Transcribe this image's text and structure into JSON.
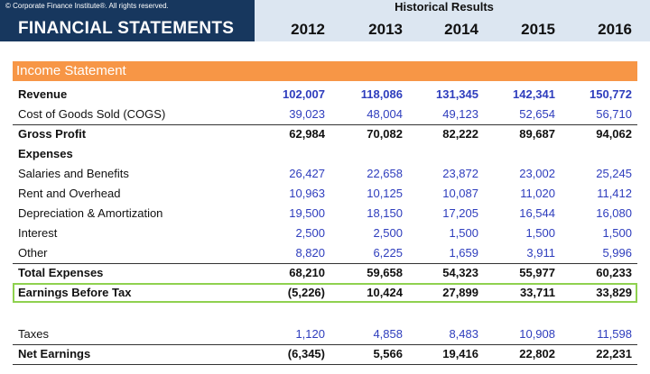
{
  "header": {
    "copyright": "© Corporate Finance Institute®. All rights reserved.",
    "title": "FINANCIAL STATEMENTS",
    "historical_label": "Historical Results",
    "years": [
      "2012",
      "2013",
      "2014",
      "2015",
      "2016"
    ]
  },
  "section": {
    "title": "Income Statement"
  },
  "rows": [
    {
      "label": "Revenue",
      "values": [
        "102,007",
        "118,086",
        "131,345",
        "142,341",
        "150,772"
      ]
    },
    {
      "label": "Cost of Goods Sold (COGS)",
      "values": [
        "39,023",
        "48,004",
        "49,123",
        "52,654",
        "56,710"
      ]
    },
    {
      "label": "Gross Profit",
      "values": [
        "62,984",
        "70,082",
        "82,222",
        "89,687",
        "94,062"
      ]
    },
    {
      "label": "Expenses",
      "values": [
        "",
        "",
        "",
        "",
        ""
      ]
    },
    {
      "label": "Salaries and Benefits",
      "values": [
        "26,427",
        "22,658",
        "23,872",
        "23,002",
        "25,245"
      ]
    },
    {
      "label": "Rent and Overhead",
      "values": [
        "10,963",
        "10,125",
        "10,087",
        "11,020",
        "11,412"
      ]
    },
    {
      "label": "Depreciation & Amortization",
      "values": [
        "19,500",
        "18,150",
        "17,205",
        "16,544",
        "16,080"
      ]
    },
    {
      "label": "Interest",
      "values": [
        "2,500",
        "2,500",
        "1,500",
        "1,500",
        "1,500"
      ]
    },
    {
      "label": "Other",
      "values": [
        "8,820",
        "6,225",
        "1,659",
        "3,911",
        "5,996"
      ]
    },
    {
      "label": "Total Expenses",
      "values": [
        "68,210",
        "59,658",
        "54,323",
        "55,977",
        "60,233"
      ]
    },
    {
      "label": "Earnings Before Tax",
      "values": [
        "(5,226)",
        "10,424",
        "27,899",
        "33,711",
        "33,829"
      ]
    },
    {
      "label": "Taxes",
      "values": [
        "1,120",
        "4,858",
        "8,483",
        "10,908",
        "11,598"
      ]
    },
    {
      "label": "Net Earnings",
      "values": [
        "(6,345)",
        "5,566",
        "19,416",
        "22,802",
        "22,231"
      ]
    }
  ],
  "colors": {
    "header_navy": "#17375e",
    "header_light_blue": "#dce6f1",
    "section_orange": "#f79646",
    "input_blue": "#2e3dbd",
    "highlight_green": "#8fd14f"
  }
}
